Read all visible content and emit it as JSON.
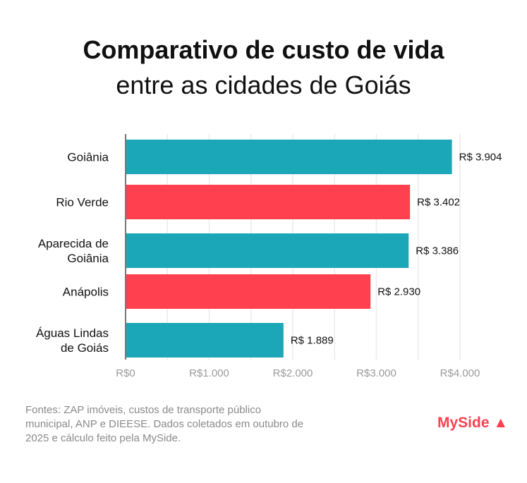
{
  "title": "Comparativo de custo de vida",
  "subtitle": "entre as cidades de Goiás",
  "source": "Fontes: ZAP imóveis, custos de transporte público municipal, ANP e DIEESE. Dados coletados em outubro de 2025 e cálculo feito pela MySide.",
  "logo": "MySide",
  "chart_data": {
    "type": "bar",
    "orientation": "horizontal",
    "categories": [
      [
        "Goiânia"
      ],
      [
        "Rio Verde"
      ],
      [
        "Aparecida de",
        "Goiânia"
      ],
      [
        "Anápolis"
      ],
      [
        "Águas Lindas",
        "de Goiás"
      ]
    ],
    "values": [
      3904,
      3402,
      3386,
      2930,
      1889
    ],
    "data_labels": [
      "R$ 3.904",
      "R$ 3.402",
      "R$ 3.386",
      "R$ 2.930",
      "R$ 1.889"
    ],
    "bar_colors": [
      "#1ba7b8",
      "#ff404e",
      "#1ba7b8",
      "#ff404e",
      "#1ba7b8"
    ],
    "xlim": [
      0,
      4000
    ],
    "xticks": [
      0,
      1000,
      2000,
      3000,
      4000
    ],
    "xtick_labels": [
      "R$0",
      "R$1.000",
      "R$2.000",
      "R$3.000",
      "R$4.000"
    ],
    "grid": true,
    "grid_step": 500,
    "legend": "none"
  }
}
